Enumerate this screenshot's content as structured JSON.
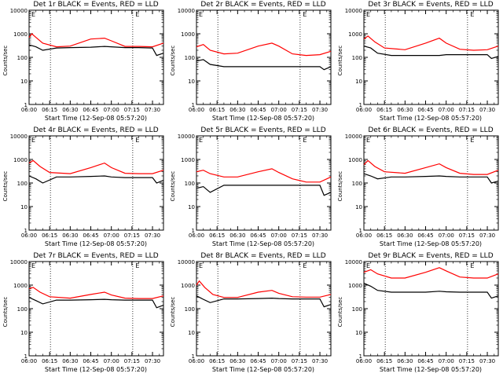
{
  "chart_data": [
    {
      "type": "line",
      "title": "Det 1r BLACK = Events, RED = LLD",
      "xlabel": "Start Time (12-Sep-08 05:57:20)",
      "ylabel": "Counts/sec",
      "ylim": [
        1,
        10000
      ],
      "yscale": "log",
      "xlim": [
        "06:00",
        "07:38"
      ],
      "x_ticks": [
        "06:00",
        "06:15",
        "06:30",
        "06:45",
        "07:00",
        "07:15",
        "07:30"
      ],
      "y_ticks": [
        "1",
        "10",
        "100",
        "1000",
        "10000"
      ],
      "grid": "vertical dotted lines at 06:15 and 07:15",
      "marker": "E",
      "series": [
        {
          "name": "BLACK = Events",
          "color": "#000000",
          "x": [
            "06:00",
            "06:05",
            "06:10",
            "06:20",
            "06:30",
            "06:45",
            "06:55",
            "07:00",
            "07:10",
            "07:20",
            "07:30",
            "07:33",
            "07:38"
          ],
          "values": [
            340,
            280,
            200,
            250,
            260,
            270,
            290,
            280,
            260,
            260,
            250,
            120,
            150
          ]
        },
        {
          "name": "RED = LLD",
          "color": "#ff0000",
          "x": [
            "06:00",
            "06:02",
            "06:05",
            "06:10",
            "06:20",
            "06:30",
            "06:45",
            "06:55",
            "07:00",
            "07:10",
            "07:20",
            "07:30",
            "07:38"
          ],
          "values": [
            700,
            1000,
            700,
            400,
            280,
            300,
            600,
            650,
            500,
            290,
            290,
            280,
            400
          ]
        }
      ]
    },
    {
      "type": "line",
      "title": "Det 2r BLACK = Events, RED = LLD",
      "xlabel": "Start Time (12-Sep-08 05:57:20)",
      "ylabel": "Counts/sec",
      "ylim": [
        1,
        10000
      ],
      "yscale": "log",
      "xlim": [
        "06:00",
        "07:38"
      ],
      "x_ticks": [
        "06:00",
        "06:15",
        "06:30",
        "06:45",
        "07:00",
        "07:15",
        "07:30"
      ],
      "y_ticks": [
        "1",
        "10",
        "100",
        "1000",
        "10000"
      ],
      "grid": "vertical dotted lines at 06:15 and 07:15",
      "marker": "E",
      "series": [
        {
          "name": "BLACK = Events",
          "color": "#000000",
          "x": [
            "06:00",
            "06:05",
            "06:10",
            "06:20",
            "06:30",
            "06:45",
            "06:55",
            "07:00",
            "07:10",
            "07:20",
            "07:30",
            "07:33",
            "07:38"
          ],
          "values": [
            70,
            80,
            50,
            40,
            40,
            40,
            40,
            40,
            40,
            40,
            40,
            30,
            40
          ]
        },
        {
          "name": "RED = LLD",
          "color": "#ff0000",
          "x": [
            "06:00",
            "06:05",
            "06:10",
            "06:20",
            "06:30",
            "06:45",
            "06:55",
            "07:00",
            "07:10",
            "07:20",
            "07:30",
            "07:38"
          ],
          "values": [
            280,
            350,
            200,
            140,
            150,
            300,
            400,
            300,
            140,
            120,
            130,
            180
          ]
        }
      ]
    },
    {
      "type": "line",
      "title": "Det 3r BLACK = Events, RED = LLD",
      "xlabel": "Start Time (12-Sep-08 05:57:20)",
      "ylabel": "Counts/sec",
      "ylim": [
        1,
        10000
      ],
      "yscale": "log",
      "xlim": [
        "06:00",
        "07:38"
      ],
      "x_ticks": [
        "06:00",
        "06:15",
        "06:30",
        "06:45",
        "07:00",
        "07:15",
        "07:30"
      ],
      "y_ticks": [
        "1",
        "10",
        "100",
        "1000",
        "10000"
      ],
      "grid": "vertical dotted lines at 06:15 and 07:15",
      "marker": "E",
      "series": [
        {
          "name": "BLACK = Events",
          "color": "#000000",
          "x": [
            "06:00",
            "06:05",
            "06:10",
            "06:20",
            "06:30",
            "06:45",
            "06:55",
            "07:00",
            "07:10",
            "07:20",
            "07:30",
            "07:33",
            "07:38"
          ],
          "values": [
            300,
            250,
            150,
            120,
            120,
            120,
            120,
            130,
            130,
            130,
            130,
            90,
            110
          ]
        },
        {
          "name": "RED = LLD",
          "color": "#ff0000",
          "x": [
            "06:00",
            "06:03",
            "06:08",
            "06:15",
            "06:30",
            "06:45",
            "06:55",
            "07:00",
            "07:10",
            "07:20",
            "07:30",
            "07:38"
          ],
          "values": [
            600,
            800,
            450,
            250,
            210,
            400,
            650,
            400,
            220,
            200,
            210,
            300
          ]
        }
      ]
    },
    {
      "type": "line",
      "title": "Det 4r BLACK = Events, RED = LLD",
      "xlabel": "Start Time (12-Sep-08 05:57:20)",
      "ylabel": "Counts/sec",
      "ylim": [
        1,
        10000
      ],
      "yscale": "log",
      "xlim": [
        "06:00",
        "07:38"
      ],
      "x_ticks": [
        "06:00",
        "06:15",
        "06:30",
        "06:45",
        "07:00",
        "07:15",
        "07:30"
      ],
      "y_ticks": [
        "1",
        "10",
        "100",
        "1000",
        "10000"
      ],
      "grid": "vertical dotted lines at 06:15 and 07:15",
      "marker": "E",
      "series": [
        {
          "name": "BLACK = Events",
          "color": "#000000",
          "x": [
            "06:00",
            "06:05",
            "06:10",
            "06:20",
            "06:30",
            "06:45",
            "06:55",
            "07:00",
            "07:10",
            "07:20",
            "07:30",
            "07:33",
            "07:38"
          ],
          "values": [
            200,
            150,
            100,
            180,
            180,
            190,
            200,
            180,
            170,
            170,
            170,
            100,
            130
          ]
        },
        {
          "name": "RED = LLD",
          "color": "#ff0000",
          "x": [
            "06:00",
            "06:03",
            "06:08",
            "06:15",
            "06:30",
            "06:45",
            "06:55",
            "07:00",
            "07:10",
            "07:20",
            "07:30",
            "07:38"
          ],
          "values": [
            700,
            900,
            500,
            280,
            250,
            450,
            700,
            450,
            260,
            250,
            250,
            350
          ]
        }
      ]
    },
    {
      "type": "line",
      "title": "Det 5r BLACK = Events, RED = LLD",
      "xlabel": "Start Time (12-Sep-08 05:57:20)",
      "ylabel": "Counts/sec",
      "ylim": [
        1,
        10000
      ],
      "yscale": "log",
      "xlim": [
        "06:00",
        "07:38"
      ],
      "x_ticks": [
        "06:00",
        "06:15",
        "06:30",
        "06:45",
        "07:00",
        "07:15",
        "07:30"
      ],
      "y_ticks": [
        "1",
        "10",
        "100",
        "1000",
        "10000"
      ],
      "grid": "vertical dotted lines at 06:15 and 07:15",
      "marker": "E",
      "series": [
        {
          "name": "BLACK = Events",
          "color": "#000000",
          "x": [
            "06:00",
            "06:05",
            "06:10",
            "06:20",
            "06:30",
            "06:45",
            "06:55",
            "07:00",
            "07:10",
            "07:20",
            "07:30",
            "07:33",
            "07:38"
          ],
          "values": [
            60,
            70,
            40,
            80,
            80,
            80,
            80,
            80,
            80,
            80,
            80,
            30,
            40
          ]
        },
        {
          "name": "RED = LLD",
          "color": "#ff0000",
          "x": [
            "06:00",
            "06:05",
            "06:10",
            "06:20",
            "06:30",
            "06:45",
            "06:55",
            "07:00",
            "07:10",
            "07:20",
            "07:30",
            "07:38"
          ],
          "values": [
            300,
            350,
            250,
            180,
            180,
            300,
            400,
            280,
            150,
            110,
            110,
            180
          ]
        }
      ]
    },
    {
      "type": "line",
      "title": "Det 6r BLACK = Events, RED = LLD",
      "xlabel": "Start Time (12-Sep-08 05:57:20)",
      "ylabel": "Counts/sec",
      "ylim": [
        1,
        10000
      ],
      "yscale": "log",
      "xlim": [
        "06:00",
        "07:38"
      ],
      "x_ticks": [
        "06:00",
        "06:15",
        "06:30",
        "06:45",
        "07:00",
        "07:15",
        "07:30"
      ],
      "y_ticks": [
        "1",
        "10",
        "100",
        "1000",
        "10000"
      ],
      "grid": "vertical dotted lines at 06:15 and 07:15",
      "marker": "E",
      "series": [
        {
          "name": "BLACK = Events",
          "color": "#000000",
          "x": [
            "06:00",
            "06:05",
            "06:10",
            "06:20",
            "06:30",
            "06:45",
            "06:55",
            "07:00",
            "07:10",
            "07:20",
            "07:30",
            "07:33",
            "07:38"
          ],
          "values": [
            250,
            200,
            150,
            180,
            180,
            190,
            200,
            190,
            180,
            180,
            180,
            100,
            120
          ]
        },
        {
          "name": "RED = LLD",
          "color": "#ff0000",
          "x": [
            "06:00",
            "06:03",
            "06:08",
            "06:15",
            "06:30",
            "06:45",
            "06:55",
            "07:00",
            "07:10",
            "07:20",
            "07:30",
            "07:38"
          ],
          "values": [
            600,
            900,
            500,
            300,
            260,
            450,
            650,
            450,
            260,
            230,
            230,
            350
          ]
        }
      ]
    },
    {
      "type": "line",
      "title": "Det 7r BLACK = Events, RED = LLD",
      "xlabel": "Start Time (12-Sep-08 05:57:20)",
      "ylabel": "Counts/sec",
      "ylim": [
        1,
        10000
      ],
      "yscale": "log",
      "xlim": [
        "06:00",
        "07:38"
      ],
      "x_ticks": [
        "06:00",
        "06:15",
        "06:30",
        "06:45",
        "07:00",
        "07:15",
        "07:30"
      ],
      "y_ticks": [
        "1",
        "10",
        "100",
        "1000",
        "10000"
      ],
      "grid": "vertical dotted lines at 06:15 and 07:15",
      "marker": "E",
      "series": [
        {
          "name": "BLACK = Events",
          "color": "#000000",
          "x": [
            "06:00",
            "06:05",
            "06:10",
            "06:20",
            "06:30",
            "06:45",
            "06:55",
            "07:00",
            "07:10",
            "07:20",
            "07:30",
            "07:33",
            "07:38"
          ],
          "values": [
            300,
            220,
            160,
            230,
            230,
            240,
            250,
            240,
            230,
            230,
            230,
            110,
            140
          ]
        },
        {
          "name": "RED = LLD",
          "color": "#ff0000",
          "x": [
            "06:00",
            "06:03",
            "06:08",
            "06:15",
            "06:30",
            "06:45",
            "06:55",
            "07:00",
            "07:10",
            "07:20",
            "07:30",
            "07:38"
          ],
          "values": [
            700,
            800,
            500,
            320,
            280,
            400,
            500,
            380,
            280,
            270,
            270,
            350
          ]
        }
      ]
    },
    {
      "type": "line",
      "title": "Det 8r BLACK = Events, RED = LLD",
      "xlabel": "Start Time (12-Sep-08 05:57:20)",
      "ylabel": "Counts/sec",
      "ylim": [
        1,
        10000
      ],
      "yscale": "log",
      "xlim": [
        "06:00",
        "07:38"
      ],
      "x_ticks": [
        "06:00",
        "06:15",
        "06:30",
        "06:45",
        "07:00",
        "07:15",
        "07:30"
      ],
      "y_ticks": [
        "1",
        "10",
        "100",
        "1000",
        "10000"
      ],
      "grid": "vertical dotted lines at 06:15 and 07:15",
      "marker": "E",
      "series": [
        {
          "name": "BLACK = Events",
          "color": "#000000",
          "x": [
            "06:00",
            "06:05",
            "06:10",
            "06:20",
            "06:30",
            "06:45",
            "06:55",
            "07:00",
            "07:10",
            "07:20",
            "07:30",
            "07:33",
            "07:38"
          ],
          "values": [
            350,
            250,
            180,
            260,
            260,
            270,
            280,
            270,
            260,
            260,
            260,
            120,
            150
          ]
        },
        {
          "name": "RED = LLD",
          "color": "#ff0000",
          "x": [
            "06:00",
            "06:02",
            "06:06",
            "06:12",
            "06:20",
            "06:30",
            "06:45",
            "06:55",
            "07:00",
            "07:10",
            "07:20",
            "07:30",
            "07:38"
          ],
          "values": [
            1000,
            1500,
            800,
            400,
            300,
            300,
            500,
            600,
            450,
            320,
            310,
            310,
            400
          ]
        }
      ]
    },
    {
      "type": "line",
      "title": "Det 9r BLACK = Events, RED = LLD",
      "xlabel": "Start Time (12-Sep-08 05:57:20)",
      "ylabel": "Counts/sec",
      "ylim": [
        1,
        10000
      ],
      "yscale": "log",
      "xlim": [
        "06:00",
        "07:38"
      ],
      "x_ticks": [
        "06:00",
        "06:15",
        "06:30",
        "06:45",
        "07:00",
        "07:15",
        "07:30"
      ],
      "y_ticks": [
        "1",
        "10",
        "100",
        "1000",
        "10000"
      ],
      "grid": "vertical dotted lines at 06:15 and 07:15",
      "marker": "E",
      "series": [
        {
          "name": "BLACK = Events",
          "color": "#000000",
          "x": [
            "06:00",
            "06:05",
            "06:10",
            "06:20",
            "06:30",
            "06:45",
            "06:55",
            "07:00",
            "07:10",
            "07:20",
            "07:30",
            "07:33",
            "07:38"
          ],
          "values": [
            1200,
            900,
            600,
            500,
            500,
            500,
            550,
            520,
            500,
            500,
            500,
            280,
            350
          ]
        },
        {
          "name": "RED = LLD",
          "color": "#ff0000",
          "x": [
            "06:00",
            "06:05",
            "06:10",
            "06:20",
            "06:30",
            "06:45",
            "06:55",
            "07:00",
            "07:10",
            "07:20",
            "07:30",
            "07:38"
          ],
          "values": [
            3500,
            4500,
            3000,
            2000,
            2000,
            3500,
            5500,
            4000,
            2200,
            2000,
            2000,
            3000
          ]
        }
      ]
    }
  ]
}
